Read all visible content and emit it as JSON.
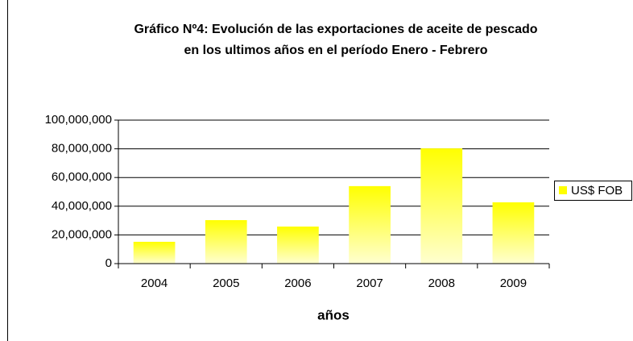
{
  "chart_data": {
    "type": "bar",
    "title": [
      "Gráfico Nº4: Evolución de las exportaciones de aceite de pescado",
      "en los ultimos años en el período Enero - Febrero"
    ],
    "x_label": "años",
    "categories": [
      "2004",
      "2005",
      "2006",
      "2007",
      "2008",
      "2009"
    ],
    "series": [
      {
        "name": "US$ FOB",
        "color": "#ffff00",
        "values": [
          15200000,
          30300000,
          25800000,
          54000000,
          80300000,
          42700000
        ]
      }
    ],
    "ylim": [
      0,
      100000000
    ],
    "yticks": [
      0,
      {
        "value": 20000000,
        "label": "20,000,000"
      },
      {
        "value": 40000000,
        "label": "40,000,000"
      },
      {
        "value": 60000000,
        "label": "60,000,000"
      },
      {
        "value": 80000000,
        "label": "80,000,000"
      },
      {
        "value": 100000000,
        "label": "100,000,000"
      }
    ],
    "grid": true,
    "legend": "right"
  }
}
